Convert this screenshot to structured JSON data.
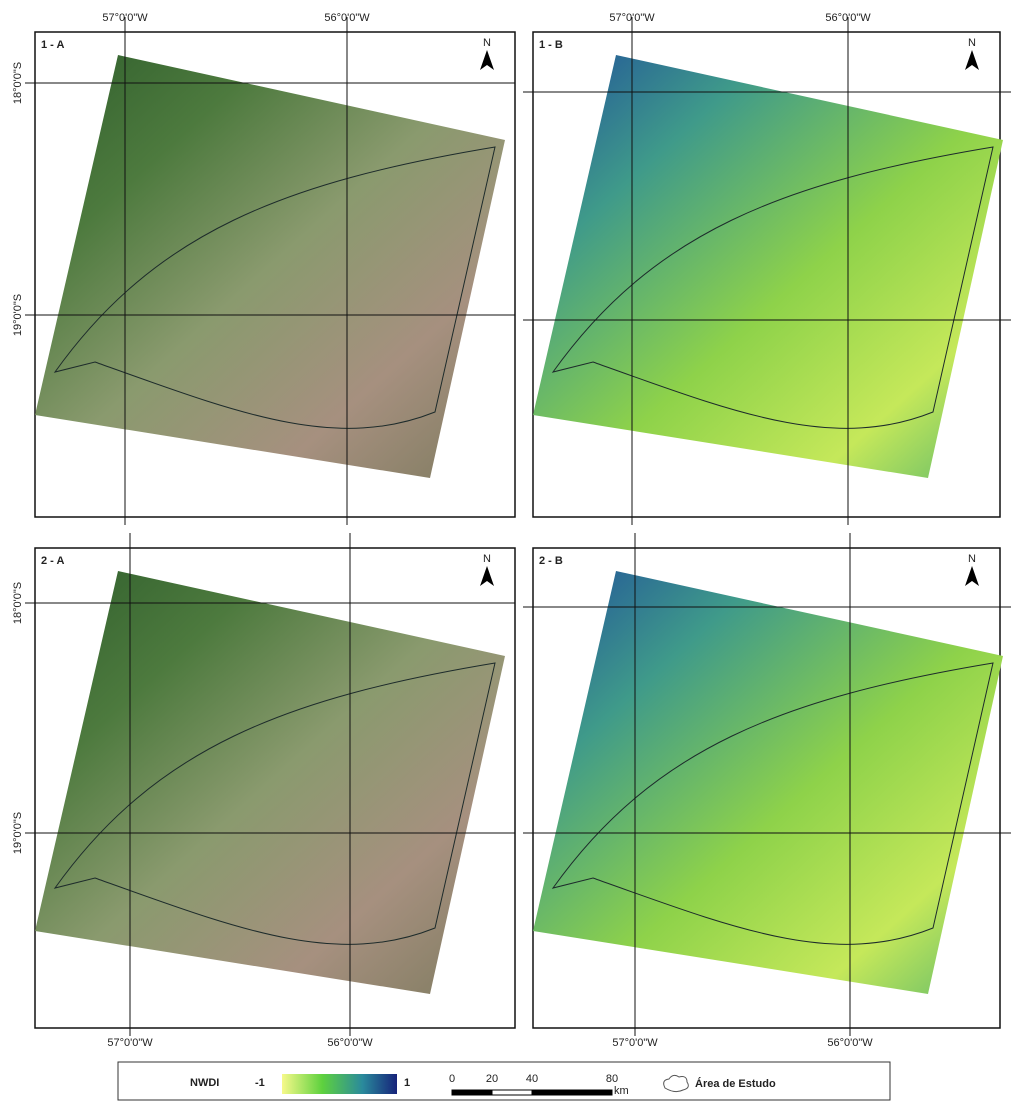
{
  "panels": [
    {
      "label": "1 - A",
      "north": "N",
      "lon_labels": [
        "57°0'0\"W",
        "56°0'0\"W"
      ],
      "lat_labels": [
        "18°0'0\"S",
        "19°0'0\"S"
      ]
    },
    {
      "label": "1 - B",
      "north": "N",
      "lon_labels": [
        "57°0'0\"W",
        "56°0'0\"W"
      ],
      "lat_labels": []
    },
    {
      "label": "2 - A",
      "north": "N",
      "lon_labels": [
        "57°0'0\"W",
        "56°0'0\"W"
      ],
      "lat_labels": [
        "18°0'0\"S",
        "19°0'0\"S"
      ]
    },
    {
      "label": "2 - B",
      "north": "N",
      "lon_labels": [
        "57°0'0\"W",
        "56°0'0\"W"
      ],
      "lat_labels": []
    }
  ],
  "legend": {
    "index_name": "NWDI",
    "min_label": "-1",
    "max_label": "1",
    "scale_bar": {
      "ticks": [
        0,
        20,
        40,
        80
      ],
      "unit": "km"
    },
    "area_label": "Área de Estudo"
  }
}
